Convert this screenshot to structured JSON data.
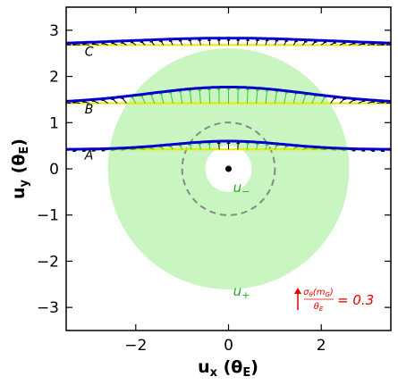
{
  "chart_data": {
    "type": "line",
    "xlabel_main": "u",
    "xlabel_sub": "x",
    "xlabel_unit": "(θ",
    "xlabel_unit_sub": "E",
    "xlabel_close": ")",
    "ylabel_main": "u",
    "ylabel_sub": "y",
    "ylabel_unit": "(θ",
    "ylabel_unit_sub": "E",
    "ylabel_close": ")",
    "xlim": [
      -3.5,
      3.5
    ],
    "ylim": [
      -3.5,
      3.5
    ],
    "xticks": [
      -2,
      0,
      2
    ],
    "yticks": [
      -3,
      -2,
      -1,
      0,
      1,
      2,
      3
    ],
    "xtick_labels": [
      "−2",
      "0",
      "2"
    ],
    "ytick_labels": [
      "−3",
      "−2",
      "−1",
      "0",
      "1",
      "2",
      "3"
    ],
    "lens_position": [
      0,
      0
    ],
    "inner_circle_radius": 1.0,
    "shaded_annulus": {
      "inner_radius": 0.5,
      "outer_radius": 2.6,
      "color": "#c8f5c0"
    },
    "region_labels": [
      {
        "text": "u",
        "sub": "−",
        "x": 0.1,
        "y": -0.5
      },
      {
        "text": "u",
        "sub": "+",
        "x": 0.1,
        "y": -2.75
      }
    ],
    "curves": [
      {
        "label": "A",
        "baseline": 0.42,
        "amplitude": 0.18,
        "width": 1.2,
        "label_x": -3.1,
        "label_y": 0.2
      },
      {
        "label": "B",
        "baseline": 1.42,
        "amplitude": 0.35,
        "width": 1.7,
        "label_x": -3.1,
        "label_y": 1.2
      },
      {
        "label": "C",
        "baseline": 2.68,
        "amplitude": 0.15,
        "width": 2.2,
        "label_x": -3.1,
        "label_y": 2.45
      }
    ],
    "legend": {
      "numerator": "σ",
      "numerator_sub": "θ",
      "numerator_paren": "(m",
      "numerator_paren_sub": "G",
      "numerator_close": ")",
      "denominator": "θ",
      "denominator_sub": "E",
      "equals": "= 0.3"
    },
    "colors": {
      "baseline": "#e8e800",
      "curve": "#0000cc",
      "arrow_outside": "#000000",
      "arrow_inside": "#33cc33",
      "inner_circle": "#888888",
      "legend": "#e00000"
    },
    "grid": false
  }
}
